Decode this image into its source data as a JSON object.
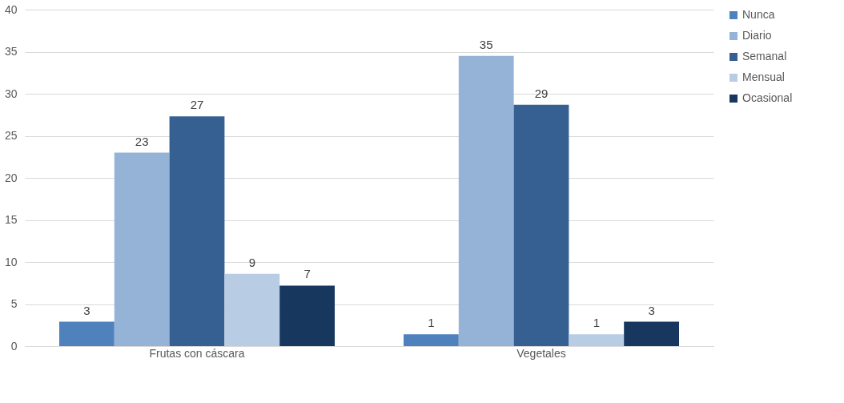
{
  "chart_data": {
    "type": "bar",
    "categories": [
      "Frutas con cáscara",
      "Vegetales"
    ],
    "series": [
      {
        "name": "Nunca",
        "color": "#4f81bd",
        "values": [
          2.9,
          1.4
        ],
        "value_labels": [
          "3",
          "1"
        ]
      },
      {
        "name": "Diario",
        "color": "#95b3d7",
        "values": [
          23,
          34.5
        ],
        "value_labels": [
          "23",
          "35"
        ]
      },
      {
        "name": "Semanal",
        "color": "#366092",
        "values": [
          27.3,
          28.7
        ],
        "value_labels": [
          "27",
          "29"
        ]
      },
      {
        "name": "Mensual",
        "color": "#b8cce4",
        "values": [
          8.6,
          1.4
        ],
        "value_labels": [
          "9",
          "1"
        ]
      },
      {
        "name": "Ocasional",
        "color": "#17375e",
        "values": [
          7.2,
          2.9
        ],
        "value_labels": [
          "7",
          "3"
        ]
      }
    ],
    "ylim": [
      0,
      40
    ],
    "yticks": [
      0,
      5,
      10,
      15,
      20,
      25,
      30,
      35,
      40
    ],
    "grid": "y",
    "legend": "right"
  }
}
